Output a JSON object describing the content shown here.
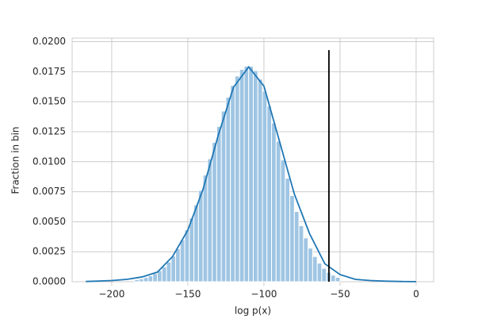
{
  "chart_data": {
    "type": "histogram",
    "xlabel": "log p(x)",
    "ylabel": "Fraction in bin",
    "bins": [
      -185,
      -182,
      -179,
      -176,
      -173,
      -170,
      -167,
      -164,
      -161,
      -158,
      -155,
      -152,
      -149,
      -146,
      -143,
      -140,
      -137,
      -134,
      -131,
      -128,
      -125,
      -122,
      -119,
      -116,
      -113,
      -110,
      -107,
      -104,
      -101,
      -98,
      -95,
      -92,
      -89,
      -86,
      -83,
      -80,
      -77,
      -74,
      -71,
      -68,
      -65,
      -62,
      -59,
      -56,
      -53,
      -50
    ],
    "values": [
      0.00017,
      0.00024,
      0.00035,
      0.00049,
      0.00068,
      0.00092,
      0.00124,
      0.00165,
      0.00214,
      0.00275,
      0.00348,
      0.00433,
      0.00531,
      0.00641,
      0.00761,
      0.00889,
      0.01024,
      0.01161,
      0.01294,
      0.01422,
      0.01537,
      0.01636,
      0.01714,
      0.01769,
      0.01796,
      0.01795,
      0.01759,
      0.01689,
      0.01588,
      0.01464,
      0.01322,
      0.0117,
      0.01014,
      0.00862,
      0.00717,
      0.00585,
      0.00467,
      0.00365,
      0.0028,
      0.0021,
      0.00155,
      0.00112,
      0.00079,
      0.00055,
      0.00037
    ],
    "color": "#9fc5e3",
    "kde": {
      "color": "#1f77b4",
      "x": [
        -217,
        -200,
        -190,
        -180,
        -170,
        -160,
        -150,
        -140,
        -130,
        -120,
        -110,
        -100,
        -90,
        -80,
        -70,
        -60,
        -50,
        -40,
        -30,
        -20,
        -10,
        0
      ],
      "values": [
        2e-05,
        0.0001,
        0.0002,
        0.0004,
        0.0008,
        0.0021,
        0.0043,
        0.0077,
        0.0122,
        0.0162,
        0.0179,
        0.0163,
        0.0118,
        0.0073,
        0.004,
        0.0015,
        0.0006,
        0.0002,
        0.0001,
        5e-05,
        2e-05,
        1e-05
      ]
    },
    "vline": {
      "x": -57.3,
      "ymax": 0.0193,
      "color": "#000000"
    },
    "xlim": [
      -226,
      11.5
    ],
    "ylim": [
      0,
      0.0203
    ],
    "xticks": [
      {
        "value": -200,
        "label": "−200"
      },
      {
        "value": -150,
        "label": "−150"
      },
      {
        "value": -100,
        "label": "−100"
      },
      {
        "value": -50,
        "label": "−50"
      },
      0
    ],
    "yticks": [
      {
        "value": 0,
        "label": "0.0000"
      },
      {
        "value": 0.0025,
        "label": "0.0025"
      },
      {
        "value": 0.005,
        "label": "0.0050"
      },
      {
        "value": 0.0075,
        "label": "0.0075"
      },
      {
        "value": 0.01,
        "label": "0.0100"
      },
      {
        "value": 0.0125,
        "label": "0.0125"
      },
      {
        "value": 0.015,
        "label": "0.0150"
      },
      {
        "value": 0.0175,
        "label": "0.0175"
      },
      {
        "value": 0.02,
        "label": "0.0200"
      }
    ],
    "grid": true
  }
}
